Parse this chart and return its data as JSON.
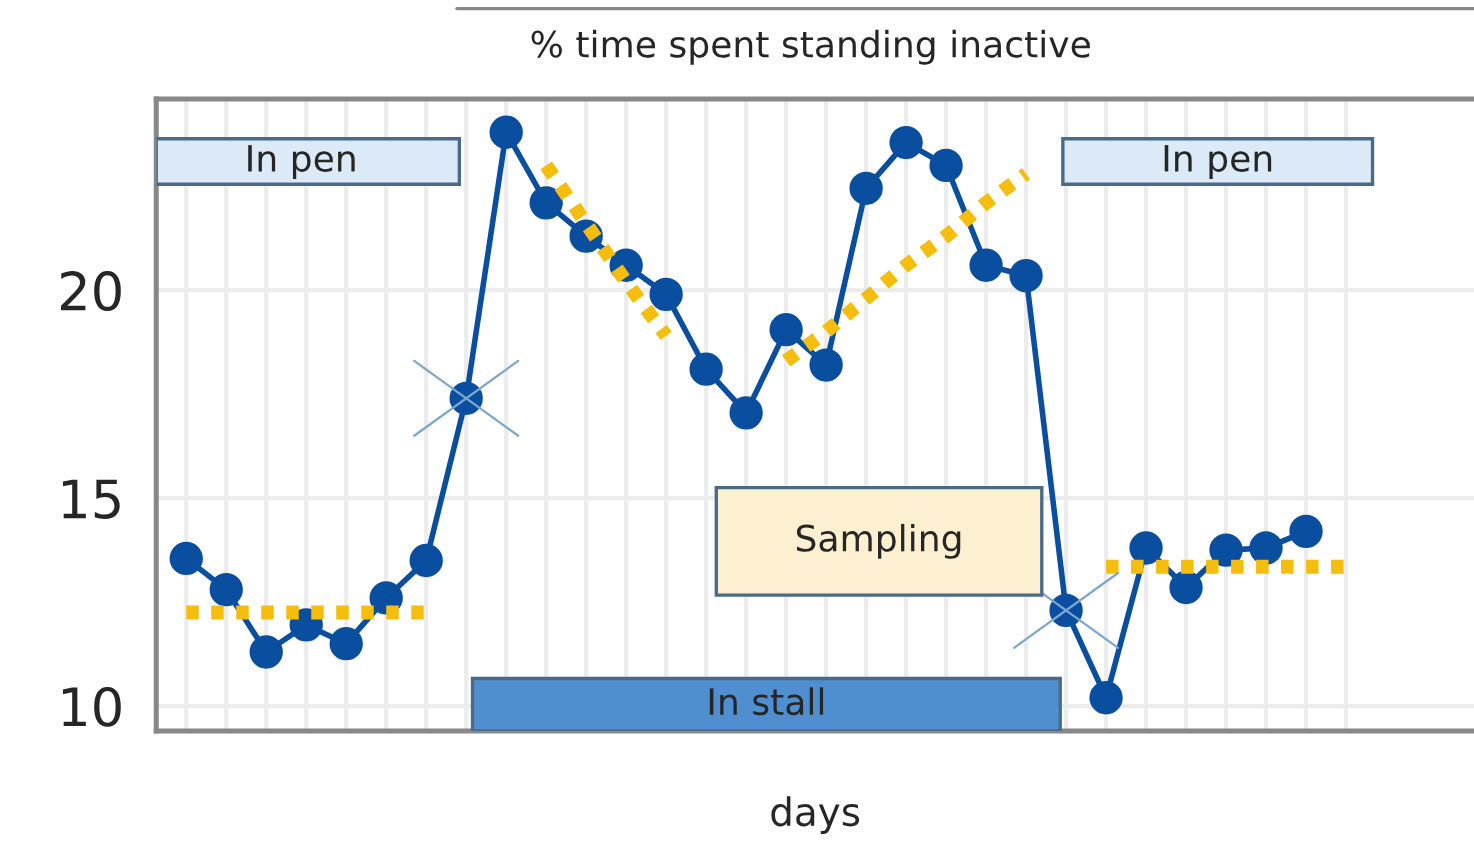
{
  "chart_data": {
    "type": "line",
    "title": "% time spent standing inactive",
    "xlabel": "days",
    "categories": [
      null,
      null,
      null,
      null,
      null,
      null,
      null,
      null,
      null,
      null,
      null,
      null,
      null,
      null,
      null,
      null,
      null,
      null,
      null,
      null,
      null,
      null,
      null,
      null,
      null,
      null,
      null,
      null,
      null,
      null
    ],
    "ylim": [
      9.4,
      24.6
    ],
    "yticks": [
      10,
      15,
      20
    ],
    "grid": true,
    "series": [
      {
        "color": "#0a4ea0",
        "marker": "circle",
        "line_style": "solid",
        "values": [
          13.55,
          12.8,
          11.3,
          11.95,
          11.5,
          12.6,
          13.5,
          17.4,
          23.8,
          22.1,
          21.3,
          20.6,
          19.9,
          18.1,
          17.05,
          19.05,
          18.2,
          22.45,
          23.55,
          23.0,
          20.6,
          20.35,
          12.3,
          10.2,
          13.8,
          12.85,
          13.75,
          13.8,
          14.2,
          null
        ]
      },
      {
        "color": "#f5bd0c",
        "marker": "none",
        "line_style": "dotted",
        "values": [
          12.25,
          12.25,
          12.25,
          12.25,
          12.25,
          12.25,
          12.25,
          null,
          null,
          null,
          null,
          null,
          null,
          null,
          null,
          null,
          null,
          null,
          null,
          null,
          null,
          null,
          null,
          null,
          null,
          null,
          null,
          null,
          null,
          null
        ]
      },
      {
        "color": "#f5bd0c",
        "marker": "none",
        "line_style": "dotted",
        "values": [
          null,
          null,
          null,
          null,
          null,
          null,
          null,
          null,
          null,
          23.0,
          21.6,
          20.2,
          18.9,
          null,
          null,
          null,
          null,
          null,
          null,
          null,
          null,
          null,
          null,
          null,
          null,
          null,
          null,
          null,
          null,
          null
        ]
      },
      {
        "color": "#f5bd0c",
        "marker": "none",
        "line_style": "dotted",
        "values": [
          null,
          null,
          null,
          null,
          null,
          null,
          null,
          null,
          null,
          null,
          null,
          null,
          null,
          null,
          null,
          18.3,
          19.0,
          19.8,
          20.6,
          21.3,
          22.1,
          22.8,
          null,
          null,
          null,
          null,
          null,
          null,
          null,
          null
        ]
      },
      {
        "color": "#f5bd0c",
        "marker": "none",
        "line_style": "dotted",
        "values": [
          null,
          null,
          null,
          null,
          null,
          null,
          null,
          null,
          null,
          null,
          null,
          null,
          null,
          null,
          null,
          null,
          null,
          null,
          null,
          null,
          null,
          null,
          null,
          13.35,
          13.35,
          13.35,
          13.35,
          13.35,
          13.35,
          13.35
        ]
      }
    ],
    "annotations": [
      "In pen",
      "In stall",
      "Sampling",
      "In pen"
    ]
  }
}
